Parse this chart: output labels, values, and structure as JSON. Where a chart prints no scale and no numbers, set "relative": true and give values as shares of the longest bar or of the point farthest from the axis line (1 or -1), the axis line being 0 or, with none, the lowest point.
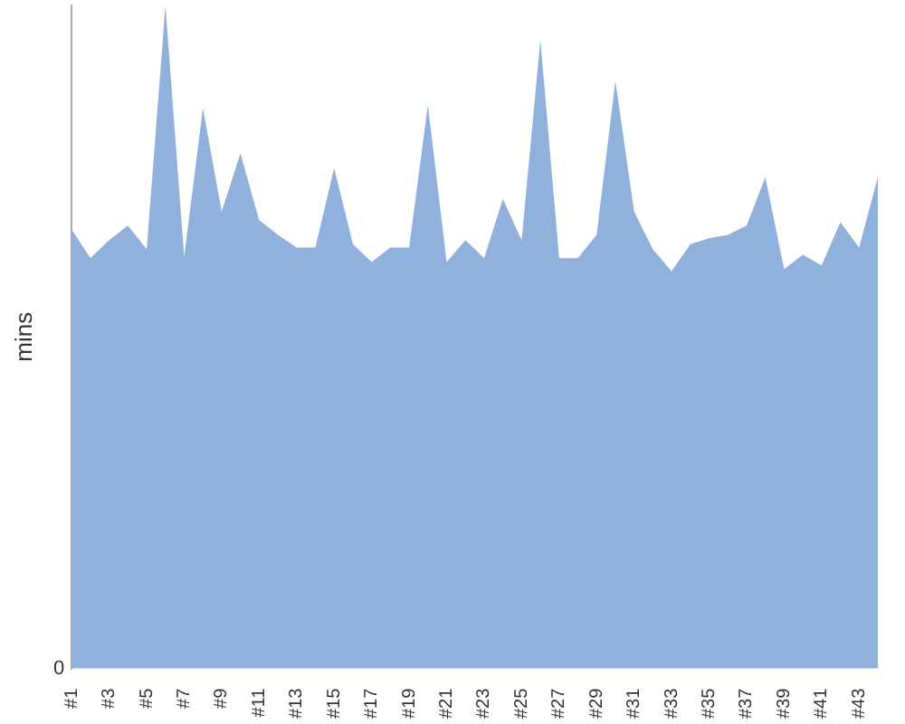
{
  "chart_data": {
    "type": "area",
    "ylabel": "mins",
    "relative": true,
    "annotations": [
      "0"
    ],
    "categories": [
      "#1",
      null,
      "#3",
      null,
      "#5",
      null,
      "#7",
      null,
      "#9",
      null,
      "#11",
      null,
      "#13",
      null,
      "#15",
      null,
      "#17",
      null,
      "#19",
      null,
      "#21",
      null,
      "#23",
      null,
      "#25",
      null,
      "#27",
      null,
      "#29",
      null,
      "#31",
      null,
      "#33",
      null,
      "#35",
      null,
      "#37",
      null,
      "#39",
      null,
      "#41",
      null,
      "#43",
      null
    ],
    "series": [
      {
        "color": "#8fb1db",
        "values": [
          0.662,
          0.619,
          0.646,
          0.668,
          0.632,
          1,
          0.621,
          0.845,
          0.689,
          0.777,
          0.676,
          0.654,
          0.635,
          0.635,
          0.755,
          0.64,
          0.613,
          0.635,
          0.635,
          0.85,
          0.613,
          0.646,
          0.619,
          0.708,
          0.646,
          0.948,
          0.619,
          0.619,
          0.654,
          0.886,
          0.689,
          0.632,
          0.599,
          0.64,
          0.649,
          0.654,
          0.668,
          0.741,
          0.602,
          0.624,
          0.608,
          0.673,
          0.635,
          0.741
        ]
      }
    ],
    "legend": false
  }
}
